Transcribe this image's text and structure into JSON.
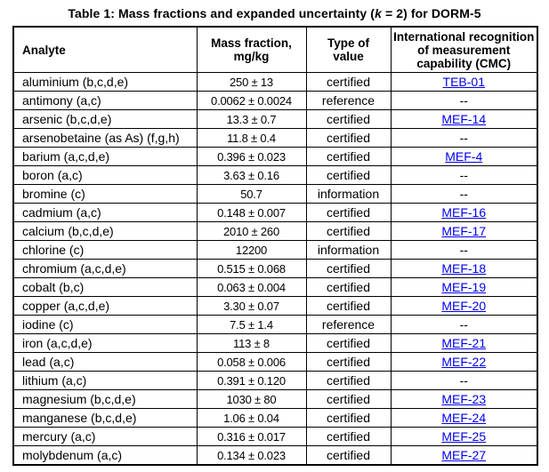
{
  "title": {
    "prefix": "Table 1: Mass fractions and expanded uncertainty (",
    "k": "k",
    "suffix": " = 2) for DORM-5"
  },
  "colors": {
    "link": "#0000ee",
    "text": "#000000",
    "border": "#000000",
    "background": "#ffffff"
  },
  "table": {
    "headers": [
      "Analyte",
      "Mass fraction,\nmg/kg",
      "Type of\nvalue",
      "International recognition\nof measurement\ncapability (CMC)"
    ],
    "rows": [
      {
        "analyte": "aluminium (b,c,d,e)",
        "mass_fraction": "250 ± 13",
        "type": "certified",
        "cmc": "TEB-01",
        "cmc_link": true
      },
      {
        "analyte": "antimony (a,c)",
        "mass_fraction": "0.0062 ± 0.0024",
        "type": "reference",
        "cmc": "--",
        "cmc_link": false
      },
      {
        "analyte": "arsenic (b,c,d,e)",
        "mass_fraction": "13.3 ± 0.7",
        "type": "certified",
        "cmc": "MEF-14",
        "cmc_link": true
      },
      {
        "analyte": "arsenobetaine (as As) (f,g,h)",
        "mass_fraction": "11.8 ± 0.4",
        "type": "certified",
        "cmc": "--",
        "cmc_link": false
      },
      {
        "analyte": "barium (a,c,d,e)",
        "mass_fraction": "0.396 ± 0.023",
        "type": "certified",
        "cmc": "MEF-4",
        "cmc_link": true
      },
      {
        "analyte": "boron (a,c)",
        "mass_fraction": "3.63 ± 0.16",
        "type": "certified",
        "cmc": "--",
        "cmc_link": false
      },
      {
        "analyte": "bromine (c)",
        "mass_fraction": "50.7",
        "type": "information",
        "cmc": "--",
        "cmc_link": false
      },
      {
        "analyte": "cadmium (a,c)",
        "mass_fraction": "0.148 ± 0.007",
        "type": "certified",
        "cmc": "MEF-16",
        "cmc_link": true
      },
      {
        "analyte": "calcium (b,c,d,e)",
        "mass_fraction": "2010 ± 260",
        "type": "certified",
        "cmc": "MEF-17",
        "cmc_link": true
      },
      {
        "analyte": "chlorine (c)",
        "mass_fraction": "12200",
        "type": "information",
        "cmc": "--",
        "cmc_link": false
      },
      {
        "analyte": "chromium (a,c,d,e)",
        "mass_fraction": "0.515 ± 0.068",
        "type": "certified",
        "cmc": "MEF-18",
        "cmc_link": true
      },
      {
        "analyte": "cobalt (b,c)",
        "mass_fraction": "0.063 ± 0.004",
        "type": "certified",
        "cmc": "MEF-19",
        "cmc_link": true
      },
      {
        "analyte": "copper (a,c,d,e)",
        "mass_fraction": "3.30 ± 0.07",
        "type": "certified",
        "cmc": "MEF-20",
        "cmc_link": true
      },
      {
        "analyte": "iodine (c)",
        "mass_fraction": "7.5 ± 1.4",
        "type": "reference",
        "cmc": "--",
        "cmc_link": false
      },
      {
        "analyte": "iron (a,c,d,e)",
        "mass_fraction": "113 ± 8",
        "type": "certified",
        "cmc": "MEF-21",
        "cmc_link": true
      },
      {
        "analyte": "lead (a,c)",
        "mass_fraction": "0.058 ± 0.006",
        "type": "certified",
        "cmc": "MEF-22",
        "cmc_link": true
      },
      {
        "analyte": "lithium (a,c)",
        "mass_fraction": "0.391 ± 0.120",
        "type": "certified",
        "cmc": "--",
        "cmc_link": false
      },
      {
        "analyte": "magnesium (b,c,d,e)",
        "mass_fraction": "1030 ± 80",
        "type": "certified",
        "cmc": "MEF-23",
        "cmc_link": true
      },
      {
        "analyte": "manganese (b,c,d,e)",
        "mass_fraction": "1.06 ± 0.04",
        "type": "certified",
        "cmc": "MEF-24",
        "cmc_link": true
      },
      {
        "analyte": "mercury (a,c)",
        "mass_fraction": "0.316 ± 0.017",
        "type": "certified",
        "cmc": "MEF-25",
        "cmc_link": true
      },
      {
        "analyte": "molybdenum (a,c)",
        "mass_fraction": "0.134 ± 0.023",
        "type": "certified",
        "cmc": "MEF-27",
        "cmc_link": true
      }
    ]
  }
}
